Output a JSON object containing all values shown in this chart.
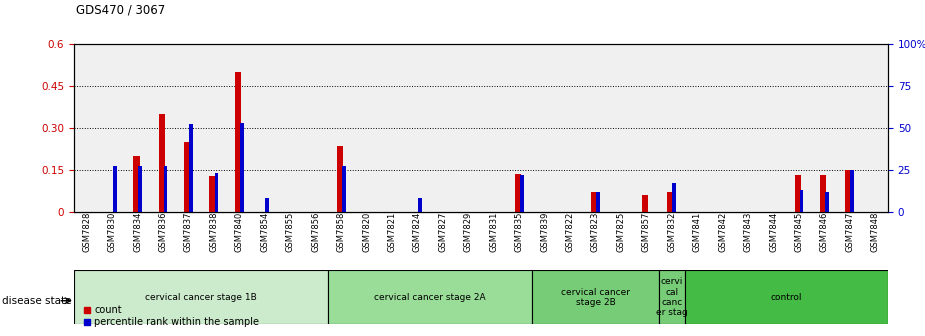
{
  "title": "GDS470 / 3067",
  "samples": [
    "GSM7828",
    "GSM7830",
    "GSM7834",
    "GSM7836",
    "GSM7837",
    "GSM7838",
    "GSM7840",
    "GSM7854",
    "GSM7855",
    "GSM7856",
    "GSM7858",
    "GSM7820",
    "GSM7821",
    "GSM7824",
    "GSM7827",
    "GSM7829",
    "GSM7831",
    "GSM7835",
    "GSM7839",
    "GSM7822",
    "GSM7823",
    "GSM7825",
    "GSM7857",
    "GSM7832",
    "GSM7841",
    "GSM7842",
    "GSM7843",
    "GSM7844",
    "GSM7845",
    "GSM7846",
    "GSM7847",
    "GSM7848"
  ],
  "count": [
    0.0,
    0.0,
    0.2,
    0.35,
    0.25,
    0.128,
    0.5,
    0.0,
    0.0,
    0.0,
    0.235,
    0.0,
    0.0,
    0.0,
    0.0,
    0.0,
    0.0,
    0.135,
    0.0,
    0.0,
    0.07,
    0.0,
    0.06,
    0.07,
    0.0,
    0.0,
    0.0,
    0.0,
    0.13,
    0.13,
    0.15,
    0.0
  ],
  "percentile": [
    0.0,
    27.0,
    27.0,
    27.0,
    52.0,
    23.0,
    53.0,
    8.0,
    0.0,
    0.0,
    27.0,
    0.0,
    0.0,
    8.0,
    0.0,
    0.0,
    0.0,
    22.0,
    0.0,
    0.0,
    12.0,
    0.0,
    0.0,
    17.0,
    0.0,
    0.0,
    0.0,
    0.0,
    13.0,
    12.0,
    25.0,
    0.0
  ],
  "disease_groups": [
    {
      "label": "cervical cancer stage 1B",
      "start": 0,
      "end": 10,
      "color": "#cceacc"
    },
    {
      "label": "cervical cancer stage 2A",
      "start": 10,
      "end": 18,
      "color": "#99dd99"
    },
    {
      "label": "cervical cancer\nstage 2B",
      "start": 18,
      "end": 23,
      "color": "#77cc77"
    },
    {
      "label": "cervi\ncal\ncanc\ner stag",
      "start": 23,
      "end": 24,
      "color": "#77cc77"
    },
    {
      "label": "control",
      "start": 24,
      "end": 32,
      "color": "#44bb44"
    }
  ],
  "ylim_left": [
    0,
    0.6
  ],
  "ylim_right": [
    0,
    100
  ],
  "yticks_left": [
    0,
    0.15,
    0.3,
    0.45,
    0.6
  ],
  "ytick_labels_left": [
    "0",
    "0.15",
    "0.30",
    "0.45",
    "0.6"
  ],
  "yticks_right": [
    0,
    25,
    50,
    75,
    100
  ],
  "ytick_labels_right": [
    "0",
    "25",
    "50",
    "75",
    "100%"
  ],
  "bar_color_red": "#cc0000",
  "bar_color_blue": "#0000cc",
  "plot_bg": "#f0f0f0"
}
